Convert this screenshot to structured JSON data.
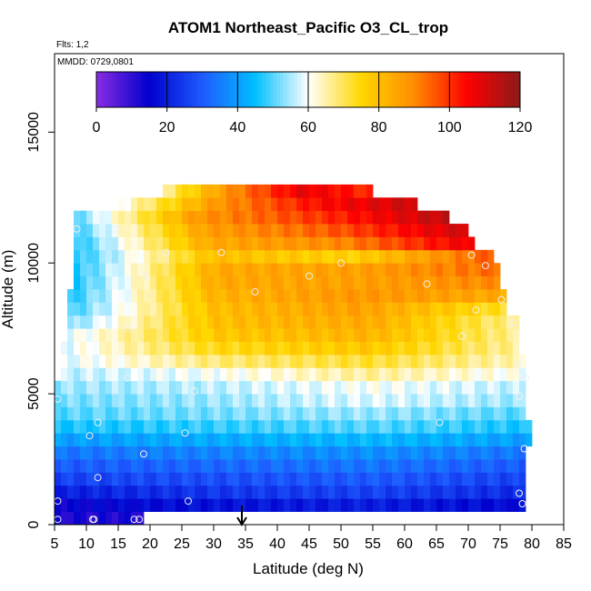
{
  "chart_data": {
    "type": "heatmap",
    "title": "ATOM1 Northeast_Pacific O3_CL_trop",
    "flights_label": "Flts: 1,2",
    "dates_label": "MMDD: 0729,0801",
    "xlabel": "Latitude (deg N)",
    "ylabel": "Altitude (m)",
    "xlim": [
      5,
      85
    ],
    "ylim": [
      0,
      18000
    ],
    "xticks": [
      "5",
      "10",
      "15",
      "20",
      "25",
      "30",
      "35",
      "40",
      "45",
      "50",
      "55",
      "60",
      "65",
      "70",
      "75",
      "80",
      "85"
    ],
    "yticks": [
      "0",
      "5000",
      "10000",
      "15000"
    ],
    "colorbar": {
      "min": 0,
      "max": 120,
      "ticks": [
        "0",
        "20",
        "40",
        "60",
        "80",
        "100",
        "120"
      ],
      "colors": [
        "#8a2be2",
        "#0000cd",
        "#1e5aff",
        "#00bfff",
        "#ffffff",
        "#ffd700",
        "#ff8c00",
        "#ff0000",
        "#8b1a1a"
      ]
    },
    "marker_latitude": 35,
    "altitude_bins_m": [
      0,
      500,
      1000,
      1500,
      2000,
      2500,
      3000,
      3500,
      4000,
      4500,
      5000,
      5500,
      6000,
      6500,
      7000,
      7500,
      8000,
      8500,
      9000,
      9500,
      10000,
      10500,
      11000,
      11500,
      12000,
      12500
    ],
    "latitude_extent_by_bin": [
      [
        5,
        19
      ],
      [
        5,
        79
      ],
      [
        5,
        79
      ],
      [
        5,
        79
      ],
      [
        5,
        79
      ],
      [
        5,
        79
      ],
      [
        5,
        80
      ],
      [
        5,
        80
      ],
      [
        5,
        79
      ],
      [
        5,
        79
      ],
      [
        5,
        79
      ],
      [
        6,
        79
      ],
      [
        6,
        79
      ],
      [
        6,
        78
      ],
      [
        7,
        78
      ],
      [
        7,
        78
      ],
      [
        7,
        76
      ],
      [
        7,
        76
      ],
      [
        8,
        75
      ],
      [
        8,
        75
      ],
      [
        8,
        74
      ],
      [
        8,
        71
      ],
      [
        8,
        70
      ],
      [
        8,
        67
      ],
      [
        15,
        62
      ],
      [
        22,
        55
      ]
    ],
    "ozone_profile_by_bin_ppbv": [
      [
        12,
        12,
        12,
        12
      ],
      [
        14,
        18,
        20,
        16
      ],
      [
        20,
        24,
        26,
        22
      ],
      [
        26,
        28,
        30,
        26
      ],
      [
        30,
        32,
        34,
        30
      ],
      [
        34,
        36,
        38,
        34
      ],
      [
        40,
        42,
        44,
        40
      ],
      [
        46,
        48,
        50,
        46
      ],
      [
        50,
        52,
        54,
        50
      ],
      [
        52,
        54,
        58,
        54
      ],
      [
        54,
        56,
        60,
        56
      ],
      [
        56,
        60,
        66,
        60
      ],
      [
        58,
        68,
        72,
        64
      ],
      [
        58,
        74,
        78,
        66
      ],
      [
        58,
        78,
        82,
        66
      ],
      [
        52,
        80,
        84,
        66
      ],
      [
        48,
        80,
        86,
        72
      ],
      [
        46,
        82,
        88,
        84
      ],
      [
        46,
        84,
        86,
        90
      ],
      [
        46,
        84,
        86,
        94
      ],
      [
        46,
        80,
        76,
        96
      ],
      [
        46,
        84,
        90,
        108
      ],
      [
        48,
        86,
        96,
        112
      ],
      [
        50,
        88,
        100,
        114
      ],
      [
        60,
        88,
        104,
        112
      ],
      [
        66,
        90,
        108,
        100
      ]
    ],
    "observation_points": [
      {
        "lat": 5.5,
        "alt": 200
      },
      {
        "lat": 11,
        "alt": 200
      },
      {
        "lat": 11.2,
        "alt": 200
      },
      {
        "lat": 17.5,
        "alt": 200
      },
      {
        "lat": 18.3,
        "alt": 200
      },
      {
        "lat": 5.5,
        "alt": 900
      },
      {
        "lat": 26,
        "alt": 900
      },
      {
        "lat": 11.8,
        "alt": 1800
      },
      {
        "lat": 19,
        "alt": 2700
      },
      {
        "lat": 10.5,
        "alt": 3400
      },
      {
        "lat": 11.8,
        "alt": 3900
      },
      {
        "lat": 25.5,
        "alt": 3500
      },
      {
        "lat": 5.5,
        "alt": 4800
      },
      {
        "lat": 27,
        "alt": 5100
      },
      {
        "lat": 10.2,
        "alt": 5700
      },
      {
        "lat": 16.5,
        "alt": 5600
      },
      {
        "lat": 16.5,
        "alt": 7500
      },
      {
        "lat": 19.5,
        "alt": 9500
      },
      {
        "lat": 22.5,
        "alt": 10400
      },
      {
        "lat": 31.2,
        "alt": 10400
      },
      {
        "lat": 36.5,
        "alt": 8900
      },
      {
        "lat": 45,
        "alt": 9500
      },
      {
        "lat": 50,
        "alt": 10000
      },
      {
        "lat": 8.5,
        "alt": 11300
      },
      {
        "lat": 14.5,
        "alt": 11300
      },
      {
        "lat": 63.5,
        "alt": 9200
      },
      {
        "lat": 65.5,
        "alt": 3900
      },
      {
        "lat": 69,
        "alt": 7200
      },
      {
        "lat": 70.5,
        "alt": 10300
      },
      {
        "lat": 71.2,
        "alt": 8200
      },
      {
        "lat": 72.7,
        "alt": 9900
      },
      {
        "lat": 75.2,
        "alt": 8600
      },
      {
        "lat": 77.2,
        "alt": 7700
      },
      {
        "lat": 77.7,
        "alt": 6100
      },
      {
        "lat": 78,
        "alt": 4900
      },
      {
        "lat": 79,
        "alt": 5600
      },
      {
        "lat": 78.8,
        "alt": 2900
      },
      {
        "lat": 78,
        "alt": 1200
      },
      {
        "lat": 78.5,
        "alt": 800
      }
    ]
  }
}
